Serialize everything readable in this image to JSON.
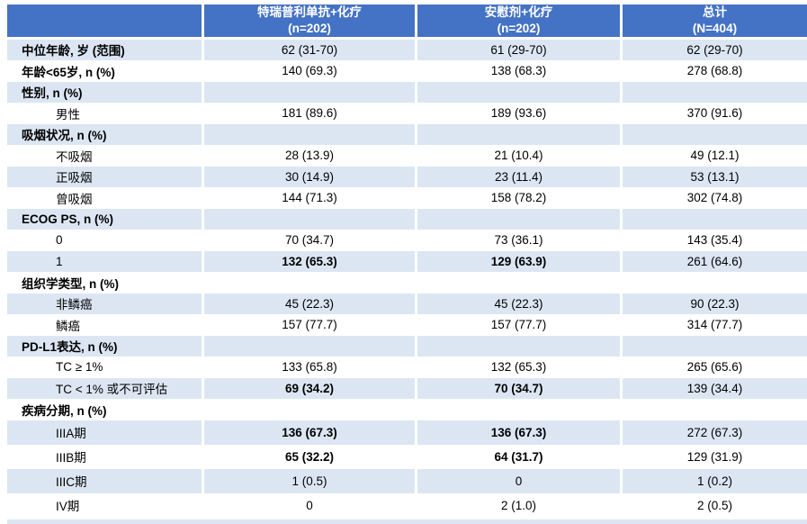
{
  "colors": {
    "header_bg": "#4472C4",
    "header_text": "#FFFFFF",
    "band_bg": "#DCE6F3",
    "plain_bg": "#FFFFFF",
    "body_text": "#000000",
    "separator": "#FFFFFF"
  },
  "table": {
    "header": {
      "row_label_column": "",
      "columns": [
        {
          "title": "特瑞普利单抗+化疗",
          "subtitle": "(n=202)"
        },
        {
          "title": "安慰剂+化疗",
          "subtitle": "(n=202)"
        },
        {
          "title": "总计",
          "subtitle": "(N=404)"
        }
      ]
    },
    "rows": [
      {
        "label": "中位年龄, 岁 (范围)",
        "indent": 0,
        "bold_label": true,
        "shaded": true,
        "tall": false,
        "cells": [
          {
            "text": "62 (31-70)",
            "bold": false
          },
          {
            "text": "61 (29-70)",
            "bold": false
          },
          {
            "text": "62 (29-70)",
            "bold": false
          }
        ]
      },
      {
        "label": "年龄<65岁, n (%)",
        "indent": 0,
        "bold_label": true,
        "shaded": false,
        "tall": false,
        "cells": [
          {
            "text": "140 (69.3)",
            "bold": false
          },
          {
            "text": "138 (68.3)",
            "bold": false
          },
          {
            "text": "278 (68.8)",
            "bold": false
          }
        ]
      },
      {
        "label": "性别, n (%)",
        "indent": 0,
        "bold_label": true,
        "shaded": true,
        "tall": false,
        "cells": [
          {
            "text": "",
            "bold": false
          },
          {
            "text": "",
            "bold": false
          },
          {
            "text": "",
            "bold": false
          }
        ]
      },
      {
        "label": "男性",
        "indent": 1,
        "bold_label": false,
        "shaded": false,
        "tall": false,
        "cells": [
          {
            "text": "181 (89.6)",
            "bold": false
          },
          {
            "text": "189 (93.6)",
            "bold": false
          },
          {
            "text": "370 (91.6)",
            "bold": false
          }
        ]
      },
      {
        "label": "吸烟状况, n (%)",
        "indent": 0,
        "bold_label": true,
        "shaded": true,
        "tall": false,
        "cells": [
          {
            "text": "",
            "bold": false
          },
          {
            "text": "",
            "bold": false
          },
          {
            "text": "",
            "bold": false
          }
        ]
      },
      {
        "label": "不吸烟",
        "indent": 1,
        "bold_label": false,
        "shaded": false,
        "tall": false,
        "cells": [
          {
            "text": "28 (13.9)",
            "bold": false
          },
          {
            "text": "21 (10.4)",
            "bold": false
          },
          {
            "text": "49 (12.1)",
            "bold": false
          }
        ]
      },
      {
        "label": "正吸烟",
        "indent": 1,
        "bold_label": false,
        "shaded": true,
        "tall": false,
        "cells": [
          {
            "text": "30 (14.9)",
            "bold": false
          },
          {
            "text": "23 (11.4)",
            "bold": false
          },
          {
            "text": "53 (13.1)",
            "bold": false
          }
        ]
      },
      {
        "label": "曾吸烟",
        "indent": 1,
        "bold_label": false,
        "shaded": false,
        "tall": false,
        "cells": [
          {
            "text": "144 (71.3)",
            "bold": false
          },
          {
            "text": "158 (78.2)",
            "bold": false
          },
          {
            "text": "302 (74.8)",
            "bold": false
          }
        ]
      },
      {
        "label": "ECOG PS, n (%)",
        "indent": 0,
        "bold_label": true,
        "shaded": true,
        "tall": false,
        "cells": [
          {
            "text": "",
            "bold": false
          },
          {
            "text": "",
            "bold": false
          },
          {
            "text": "",
            "bold": false
          }
        ]
      },
      {
        "label": "0",
        "indent": 1,
        "bold_label": false,
        "shaded": false,
        "tall": false,
        "cells": [
          {
            "text": "70 (34.7)",
            "bold": false
          },
          {
            "text": "73 (36.1)",
            "bold": false
          },
          {
            "text": "143 (35.4)",
            "bold": false
          }
        ]
      },
      {
        "label": "1",
        "indent": 1,
        "bold_label": false,
        "shaded": true,
        "tall": false,
        "cells": [
          {
            "text": "132 (65.3)",
            "bold": true
          },
          {
            "text": "129 (63.9)",
            "bold": true
          },
          {
            "text": "261 (64.6)",
            "bold": false
          }
        ]
      },
      {
        "label": "组织学类型, n (%)",
        "indent": 0,
        "bold_label": true,
        "shaded": false,
        "tall": false,
        "cells": [
          {
            "text": "",
            "bold": false
          },
          {
            "text": "",
            "bold": false
          },
          {
            "text": "",
            "bold": false
          }
        ]
      },
      {
        "label": "非鳞癌",
        "indent": 1,
        "bold_label": false,
        "shaded": true,
        "tall": false,
        "cells": [
          {
            "text": "45 (22.3)",
            "bold": false
          },
          {
            "text": "45 (22.3)",
            "bold": false
          },
          {
            "text": "90 (22.3)",
            "bold": false
          }
        ]
      },
      {
        "label": "鳞癌",
        "indent": 1,
        "bold_label": false,
        "shaded": false,
        "tall": false,
        "cells": [
          {
            "text": "157 (77.7)",
            "bold": false
          },
          {
            "text": "157 (77.7)",
            "bold": false
          },
          {
            "text": "314 (77.7)",
            "bold": false
          }
        ]
      },
      {
        "label": "PD-L1表达, n (%)",
        "indent": 0,
        "bold_label": true,
        "shaded": true,
        "tall": false,
        "cells": [
          {
            "text": "",
            "bold": false
          },
          {
            "text": "",
            "bold": false
          },
          {
            "text": "",
            "bold": false
          }
        ]
      },
      {
        "label": "TC ≥ 1%",
        "indent": 1,
        "bold_label": false,
        "shaded": false,
        "tall": false,
        "cells": [
          {
            "text": "133 (65.8)",
            "bold": false
          },
          {
            "text": "132 (65.3)",
            "bold": false
          },
          {
            "text": "265 (65.6)",
            "bold": false
          }
        ]
      },
      {
        "label": "TC < 1% 或不可评估",
        "indent": 1,
        "bold_label": false,
        "shaded": true,
        "tall": false,
        "cells": [
          {
            "text": "69 (34.2)",
            "bold": true
          },
          {
            "text": "70 (34.7)",
            "bold": true
          },
          {
            "text": "139 (34.4)",
            "bold": false
          }
        ]
      },
      {
        "label": "疾病分期, n (%)",
        "indent": 0,
        "bold_label": true,
        "shaded": false,
        "tall": false,
        "cells": [
          {
            "text": "",
            "bold": false
          },
          {
            "text": "",
            "bold": false
          },
          {
            "text": "",
            "bold": false
          }
        ]
      },
      {
        "label": "IIIA期",
        "indent": 1,
        "bold_label": false,
        "shaded": true,
        "tall": true,
        "cells": [
          {
            "text": "136 (67.3)",
            "bold": true
          },
          {
            "text": "136 (67.3)",
            "bold": true
          },
          {
            "text": "272 (67.3)",
            "bold": false
          }
        ]
      },
      {
        "label": "IIIB期",
        "indent": 1,
        "bold_label": false,
        "shaded": false,
        "tall": true,
        "cells": [
          {
            "text": "65 (32.2)",
            "bold": true
          },
          {
            "text": "64 (31.7)",
            "bold": true
          },
          {
            "text": "129 (31.9)",
            "bold": false
          }
        ]
      },
      {
        "label": "IIIC期",
        "indent": 1,
        "bold_label": false,
        "shaded": true,
        "tall": true,
        "cells": [
          {
            "text": "1 (0.5)",
            "bold": false
          },
          {
            "text": "0",
            "bold": false
          },
          {
            "text": "1 (0.2)",
            "bold": false
          }
        ]
      },
      {
        "label": "IV期",
        "indent": 1,
        "bold_label": false,
        "shaded": false,
        "tall": true,
        "cells": [
          {
            "text": "0",
            "bold": false
          },
          {
            "text": "2 (1.0)",
            "bold": false
          },
          {
            "text": "2 (0.5)",
            "bold": false
          }
        ]
      }
    ]
  }
}
